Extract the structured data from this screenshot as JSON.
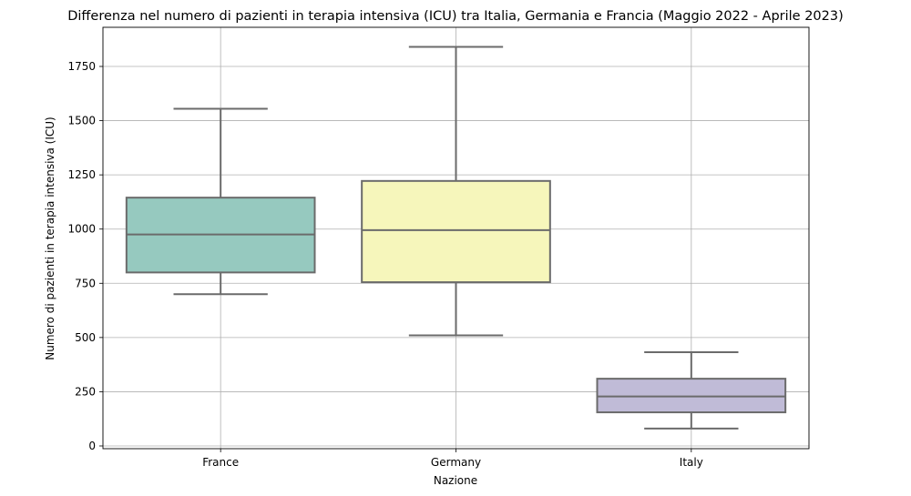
{
  "chart_data": {
    "type": "box",
    "title": "Differenza nel numero di pazienti in terapia intensiva (ICU) tra Italia, Germania e Francia (Maggio 2022 - Aprile 2023)",
    "xlabel": "Nazione",
    "ylabel": "Numero di pazienti in terapia intensiva (ICU)",
    "ylim": [
      -10,
      1930
    ],
    "yticks": [
      0,
      250,
      500,
      750,
      1000,
      1250,
      1500,
      1750
    ],
    "grid": true,
    "categories": [
      "France",
      "Germany",
      "Italy"
    ],
    "boxes": [
      {
        "category": "France",
        "min": 700,
        "q1": 800,
        "median": 975,
        "q3": 1145,
        "max": 1555,
        "color": "#96c9bf"
      },
      {
        "category": "Germany",
        "min": 510,
        "q1": 755,
        "median": 995,
        "q3": 1222,
        "max": 1840,
        "color": "#f6f6bb"
      },
      {
        "category": "Italy",
        "min": 80,
        "q1": 155,
        "median": 228,
        "q3": 310,
        "max": 432,
        "color": "#c0bbd7"
      }
    ]
  }
}
